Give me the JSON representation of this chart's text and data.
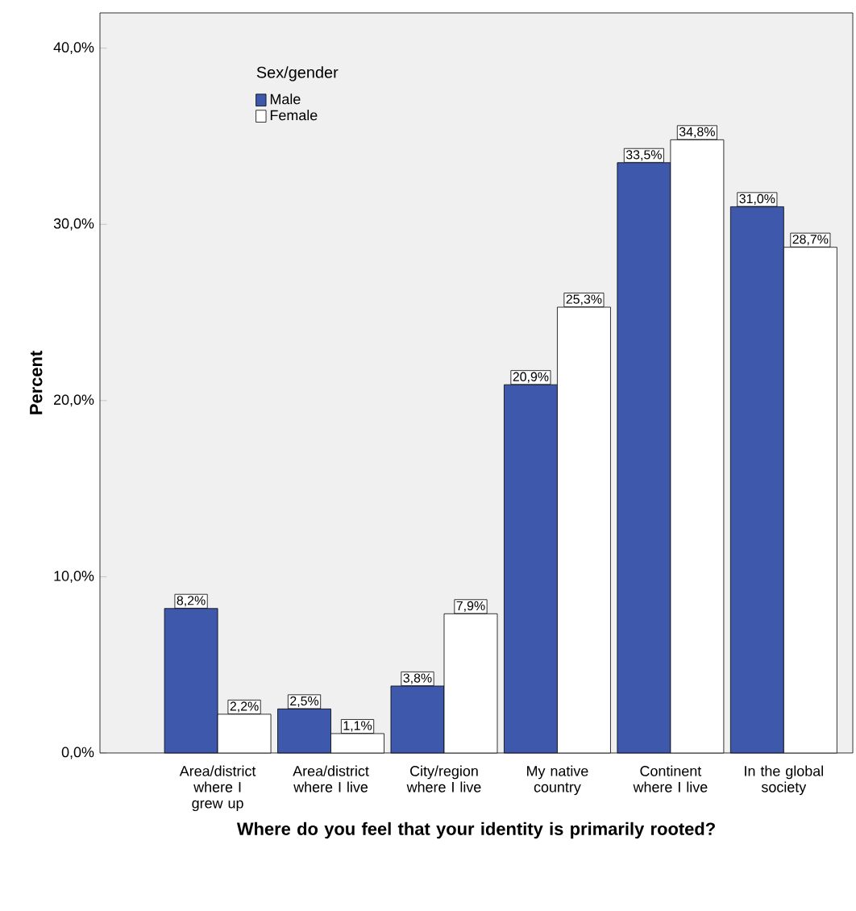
{
  "chart_data": {
    "type": "bar",
    "xlabel": "Where do you feel that your identity is primarily rooted?",
    "ylabel": "Percent",
    "legend_title": "Sex/gender",
    "categories": [
      "Area/district where I grew up",
      "Area/district where I live",
      "City/region where I live",
      "My native country",
      "Continent where I live",
      "In the global society"
    ],
    "series": [
      {
        "name": "Male",
        "color": "#3e58ac",
        "values": [
          8.2,
          2.5,
          3.8,
          20.9,
          33.5,
          31.0
        ],
        "value_labels": [
          "8,2%",
          "2,5%",
          "3,8%",
          "20,9%",
          "33,5%",
          "31,0%"
        ]
      },
      {
        "name": "Female",
        "color": "#ffffff",
        "values": [
          2.2,
          1.1,
          7.9,
          25.3,
          34.8,
          28.7
        ],
        "value_labels": [
          "2,2%",
          "1,1%",
          "7,9%",
          "25,3%",
          "34,8%",
          "28,7%"
        ]
      }
    ],
    "ylim": [
      0,
      42
    ],
    "yticks": [
      {
        "value": 0,
        "label": "0,0%"
      },
      {
        "value": 10,
        "label": "10,0%"
      },
      {
        "value": 20,
        "label": "20,0%"
      },
      {
        "value": 30,
        "label": "30,0%"
      },
      {
        "value": 40,
        "label": "40,0%"
      }
    ],
    "legend": "top left",
    "grid": false
  }
}
